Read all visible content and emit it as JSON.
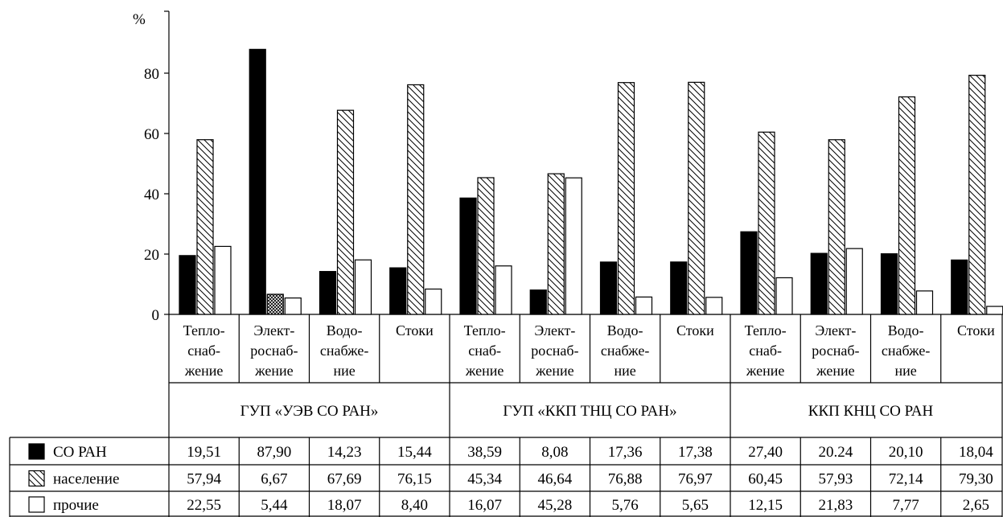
{
  "chart_data": {
    "type": "bar",
    "y_unit": "%",
    "yticks": [
      0,
      20,
      40,
      60,
      80
    ],
    "ylim": [
      0,
      98
    ],
    "grid": false,
    "groups": [
      {
        "label": "ГУП «УЭВ СО РАН»",
        "categories": [
          [
            "Тепло-",
            "снаб-",
            "жение"
          ],
          [
            "Элект-",
            "роснаб-",
            "жение"
          ],
          [
            "Водо-",
            "снабже-",
            "ние"
          ],
          [
            "Стоки"
          ]
        ]
      },
      {
        "label": "ГУП «ККП ТНЦ СО РАН»",
        "categories": [
          [
            "Тепло-",
            "снаб-",
            "жение"
          ],
          [
            "Элект-",
            "роснаб-",
            "жение"
          ],
          [
            "Водо-",
            "снабже-",
            "ние"
          ],
          [
            "Стоки"
          ]
        ]
      },
      {
        "label": "ККП КНЦ СО РАН",
        "categories": [
          [
            "Тепло-",
            "снаб-",
            "жение"
          ],
          [
            "Элект-",
            "роснаб-",
            "жение"
          ],
          [
            "Водо-",
            "снабже-",
            "ние"
          ],
          [
            "Стоки"
          ]
        ]
      }
    ],
    "series": [
      {
        "name": "СО РАН",
        "fill": "solid",
        "color": "#000000",
        "values": [
          19.51,
          87.9,
          14.23,
          15.44,
          38.59,
          8.08,
          17.36,
          17.38,
          27.4,
          20.24,
          20.1,
          18.04
        ],
        "labels": [
          "19,51",
          "87,90",
          "14,23",
          "15,44",
          "38,59",
          "8,08",
          "17,36",
          "17,38",
          "27,40",
          "20.24",
          "20,10",
          "18,04"
        ]
      },
      {
        "name": "население",
        "fill": "hatch",
        "values": [
          57.94,
          6.67,
          67.69,
          76.15,
          45.34,
          46.64,
          76.88,
          76.97,
          60.45,
          57.93,
          72.14,
          79.3
        ],
        "labels": [
          "57,94",
          "6,67",
          "67,69",
          "76,15",
          "45,34",
          "46,64",
          "76,88",
          "76,97",
          "60,45",
          "57,93",
          "72,14",
          "79,30"
        ]
      },
      {
        "name": "прочие",
        "fill": "empty",
        "values": [
          22.55,
          5.44,
          18.07,
          8.4,
          16.07,
          45.28,
          5.76,
          5.65,
          12.15,
          21.83,
          7.77,
          2.65
        ],
        "labels": [
          "22,55",
          "5,44",
          "18,07",
          "8,40",
          "16,07",
          "45,28",
          "5,76",
          "5,65",
          "12,15",
          "21,83",
          "7,77",
          "2,65"
        ]
      }
    ],
    "special_fill": {
      "series": 1,
      "index": 1,
      "fill": "crosshatch"
    }
  }
}
